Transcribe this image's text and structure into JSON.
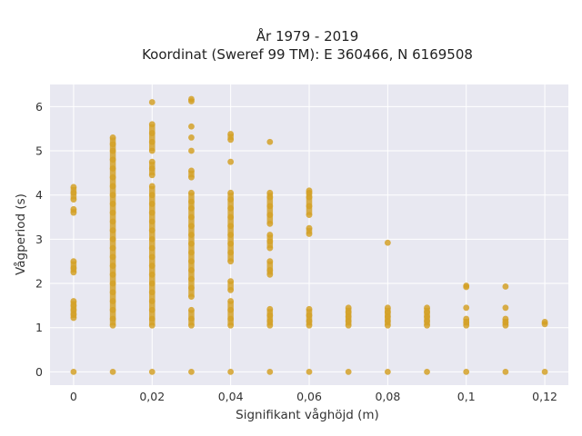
{
  "chart_data": {
    "type": "scatter",
    "title": "År 1979 - 2019",
    "subtitle": "Koordinat (Sweref 99 TM): E 360466, N 6169508",
    "xlabel": "Signifikant våghöjd (m)",
    "ylabel": "Vågperiod (s)",
    "xlim": [
      -0.006,
      0.126
    ],
    "ylim": [
      -0.3,
      6.5
    ],
    "x_ticks": [
      0,
      0.02,
      0.04,
      0.06,
      0.08,
      0.1,
      0.12
    ],
    "x_tick_labels": [
      "0",
      "0,02",
      "0,04",
      "0,06",
      "0,08",
      "0,1",
      "0,12"
    ],
    "y_ticks": [
      0,
      1,
      2,
      3,
      4,
      5,
      6
    ],
    "y_tick_labels": [
      "0",
      "1",
      "2",
      "3",
      "4",
      "5",
      "6"
    ],
    "grid": true,
    "colors": {
      "marker": "#d4a128",
      "plot_background": "#e8e8f1",
      "grid": "#ffffff"
    },
    "series": [
      {
        "points": [
          {
            "x": 0,
            "y": 0
          },
          {
            "x": 0,
            "y": 1.22
          },
          {
            "x": 0,
            "y": 1.3
          },
          {
            "x": 0,
            "y": 1.4
          },
          {
            "x": 0,
            "y": 1.5
          },
          {
            "x": 0,
            "y": 1.6
          },
          {
            "x": 0,
            "y": 2.25
          },
          {
            "x": 0,
            "y": 2.35
          },
          {
            "x": 0,
            "y": 2.5
          },
          {
            "x": 0,
            "y": 3.6
          },
          {
            "x": 0,
            "y": 3.68
          },
          {
            "x": 0,
            "y": 3.9
          },
          {
            "x": 0,
            "y": 4.05
          },
          {
            "x": 0,
            "y": 4.18
          },
          {
            "x": 0.01,
            "y": 0
          },
          {
            "x": 0.01,
            "y": 1.05
          },
          {
            "x": 0.01,
            "y": 1.2
          },
          {
            "x": 0.01,
            "y": 1.4
          },
          {
            "x": 0.01,
            "y": 1.6
          },
          {
            "x": 0.01,
            "y": 1.8
          },
          {
            "x": 0.01,
            "y": 2.0
          },
          {
            "x": 0.01,
            "y": 2.2
          },
          {
            "x": 0.01,
            "y": 2.4
          },
          {
            "x": 0.01,
            "y": 2.6
          },
          {
            "x": 0.01,
            "y": 2.8
          },
          {
            "x": 0.01,
            "y": 3.0
          },
          {
            "x": 0.01,
            "y": 3.2
          },
          {
            "x": 0.01,
            "y": 3.4
          },
          {
            "x": 0.01,
            "y": 3.6
          },
          {
            "x": 0.01,
            "y": 3.8
          },
          {
            "x": 0.01,
            "y": 4.0
          },
          {
            "x": 0.01,
            "y": 4.2
          },
          {
            "x": 0.01,
            "y": 4.4
          },
          {
            "x": 0.01,
            "y": 4.6
          },
          {
            "x": 0.01,
            "y": 4.8
          },
          {
            "x": 0.01,
            "y": 5.0
          },
          {
            "x": 0.01,
            "y": 5.15
          },
          {
            "x": 0.01,
            "y": 5.3
          },
          {
            "x": 0.02,
            "y": 0
          },
          {
            "x": 0.02,
            "y": 1.05
          },
          {
            "x": 0.02,
            "y": 1.2
          },
          {
            "x": 0.02,
            "y": 1.4
          },
          {
            "x": 0.02,
            "y": 1.6
          },
          {
            "x": 0.02,
            "y": 1.8
          },
          {
            "x": 0.02,
            "y": 2.0
          },
          {
            "x": 0.02,
            "y": 2.2
          },
          {
            "x": 0.02,
            "y": 2.4
          },
          {
            "x": 0.02,
            "y": 2.6
          },
          {
            "x": 0.02,
            "y": 2.8
          },
          {
            "x": 0.02,
            "y": 3.0
          },
          {
            "x": 0.02,
            "y": 3.2
          },
          {
            "x": 0.02,
            "y": 3.4
          },
          {
            "x": 0.02,
            "y": 3.6
          },
          {
            "x": 0.02,
            "y": 3.8
          },
          {
            "x": 0.02,
            "y": 4.0
          },
          {
            "x": 0.02,
            "y": 4.2
          },
          {
            "x": 0.02,
            "y": 4.45
          },
          {
            "x": 0.02,
            "y": 4.6
          },
          {
            "x": 0.02,
            "y": 4.75
          },
          {
            "x": 0.02,
            "y": 5.0
          },
          {
            "x": 0.02,
            "y": 5.2
          },
          {
            "x": 0.02,
            "y": 5.4
          },
          {
            "x": 0.02,
            "y": 5.6
          },
          {
            "x": 0.02,
            "y": 6.1
          },
          {
            "x": 0.03,
            "y": 0
          },
          {
            "x": 0.03,
            "y": 1.05
          },
          {
            "x": 0.03,
            "y": 1.2
          },
          {
            "x": 0.03,
            "y": 1.4
          },
          {
            "x": 0.03,
            "y": 1.7
          },
          {
            "x": 0.03,
            "y": 1.9
          },
          {
            "x": 0.03,
            "y": 2.1
          },
          {
            "x": 0.03,
            "y": 2.3
          },
          {
            "x": 0.03,
            "y": 2.5
          },
          {
            "x": 0.03,
            "y": 2.7
          },
          {
            "x": 0.03,
            "y": 2.9
          },
          {
            "x": 0.03,
            "y": 3.1
          },
          {
            "x": 0.03,
            "y": 3.3
          },
          {
            "x": 0.03,
            "y": 3.5
          },
          {
            "x": 0.03,
            "y": 3.7
          },
          {
            "x": 0.03,
            "y": 3.85
          },
          {
            "x": 0.03,
            "y": 4.05
          },
          {
            "x": 0.03,
            "y": 4.4
          },
          {
            "x": 0.03,
            "y": 4.55
          },
          {
            "x": 0.03,
            "y": 5.0
          },
          {
            "x": 0.03,
            "y": 5.3
          },
          {
            "x": 0.03,
            "y": 5.55
          },
          {
            "x": 0.03,
            "y": 6.12
          },
          {
            "x": 0.03,
            "y": 6.17
          },
          {
            "x": 0.04,
            "y": 0
          },
          {
            "x": 0.04,
            "y": 1.05
          },
          {
            "x": 0.04,
            "y": 1.2
          },
          {
            "x": 0.04,
            "y": 1.4
          },
          {
            "x": 0.04,
            "y": 1.6
          },
          {
            "x": 0.04,
            "y": 1.85
          },
          {
            "x": 0.04,
            "y": 2.05
          },
          {
            "x": 0.04,
            "y": 2.5
          },
          {
            "x": 0.04,
            "y": 2.7
          },
          {
            "x": 0.04,
            "y": 2.9
          },
          {
            "x": 0.04,
            "y": 3.1
          },
          {
            "x": 0.04,
            "y": 3.3
          },
          {
            "x": 0.04,
            "y": 3.5
          },
          {
            "x": 0.04,
            "y": 3.7
          },
          {
            "x": 0.04,
            "y": 3.9
          },
          {
            "x": 0.04,
            "y": 4.05
          },
          {
            "x": 0.04,
            "y": 4.75
          },
          {
            "x": 0.04,
            "y": 5.25
          },
          {
            "x": 0.04,
            "y": 5.38
          },
          {
            "x": 0.05,
            "y": 0
          },
          {
            "x": 0.05,
            "y": 1.05
          },
          {
            "x": 0.05,
            "y": 1.15
          },
          {
            "x": 0.05,
            "y": 1.28
          },
          {
            "x": 0.05,
            "y": 1.42
          },
          {
            "x": 0.05,
            "y": 2.2
          },
          {
            "x": 0.05,
            "y": 2.3
          },
          {
            "x": 0.05,
            "y": 2.5
          },
          {
            "x": 0.05,
            "y": 2.8
          },
          {
            "x": 0.05,
            "y": 2.95
          },
          {
            "x": 0.05,
            "y": 3.1
          },
          {
            "x": 0.05,
            "y": 3.35
          },
          {
            "x": 0.05,
            "y": 3.55
          },
          {
            "x": 0.05,
            "y": 3.75
          },
          {
            "x": 0.05,
            "y": 3.95
          },
          {
            "x": 0.05,
            "y": 4.05
          },
          {
            "x": 0.05,
            "y": 5.2
          },
          {
            "x": 0.06,
            "y": 0
          },
          {
            "x": 0.06,
            "y": 1.05
          },
          {
            "x": 0.06,
            "y": 1.15
          },
          {
            "x": 0.06,
            "y": 1.28
          },
          {
            "x": 0.06,
            "y": 1.42
          },
          {
            "x": 0.06,
            "y": 3.12
          },
          {
            "x": 0.06,
            "y": 3.25
          },
          {
            "x": 0.06,
            "y": 3.55
          },
          {
            "x": 0.06,
            "y": 3.75
          },
          {
            "x": 0.06,
            "y": 3.95
          },
          {
            "x": 0.06,
            "y": 4.05
          },
          {
            "x": 0.06,
            "y": 4.1
          },
          {
            "x": 0.07,
            "y": 0
          },
          {
            "x": 0.07,
            "y": 1.05
          },
          {
            "x": 0.07,
            "y": 1.15
          },
          {
            "x": 0.07,
            "y": 1.25
          },
          {
            "x": 0.07,
            "y": 1.35
          },
          {
            "x": 0.07,
            "y": 1.45
          },
          {
            "x": 0.08,
            "y": 0
          },
          {
            "x": 0.08,
            "y": 1.05
          },
          {
            "x": 0.08,
            "y": 1.15
          },
          {
            "x": 0.08,
            "y": 1.25
          },
          {
            "x": 0.08,
            "y": 1.35
          },
          {
            "x": 0.08,
            "y": 1.45
          },
          {
            "x": 0.08,
            "y": 2.92
          },
          {
            "x": 0.09,
            "y": 0
          },
          {
            "x": 0.09,
            "y": 1.05
          },
          {
            "x": 0.09,
            "y": 1.15
          },
          {
            "x": 0.09,
            "y": 1.25
          },
          {
            "x": 0.09,
            "y": 1.35
          },
          {
            "x": 0.09,
            "y": 1.45
          },
          {
            "x": 0.1,
            "y": 0
          },
          {
            "x": 0.1,
            "y": 1.05
          },
          {
            "x": 0.1,
            "y": 1.12
          },
          {
            "x": 0.1,
            "y": 1.2
          },
          {
            "x": 0.1,
            "y": 1.45
          },
          {
            "x": 0.1,
            "y": 1.92
          },
          {
            "x": 0.1,
            "y": 1.95
          },
          {
            "x": 0.11,
            "y": 0
          },
          {
            "x": 0.11,
            "y": 1.05
          },
          {
            "x": 0.11,
            "y": 1.12
          },
          {
            "x": 0.11,
            "y": 1.2
          },
          {
            "x": 0.11,
            "y": 1.45
          },
          {
            "x": 0.11,
            "y": 1.93
          },
          {
            "x": 0.12,
            "y": 0
          },
          {
            "x": 0.12,
            "y": 1.08
          },
          {
            "x": 0.12,
            "y": 1.13
          }
        ]
      }
    ]
  }
}
